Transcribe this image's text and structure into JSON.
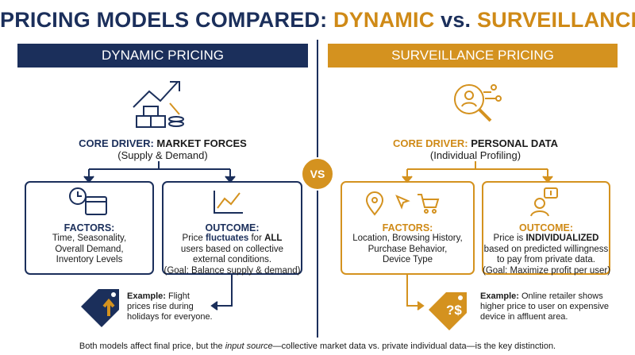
{
  "title": {
    "parts": [
      "PRICING MODELS COMPARED:",
      "DYNAMIC",
      "vs.",
      "SURVEILLANCE"
    ]
  },
  "vs": "VS",
  "left": {
    "header": "DYNAMIC PRICING",
    "driver_label": "CORE DRIVER:",
    "driver": "MARKET FORCES",
    "driver_sub": "(Supply & Demand)",
    "factors": {
      "label": "FACTORS:",
      "lines": [
        "Time, Seasonality,",
        "Overall Demand,",
        "Inventory Levels"
      ]
    },
    "outcome": {
      "label": "OUTCOME:",
      "line1": [
        "Price ",
        "fluctuates",
        " for ",
        "ALL"
      ],
      "lines": [
        "users based on collective",
        "external conditions.",
        "(Goal: Balance supply & demand)"
      ]
    },
    "example": {
      "label": "Example:",
      "text": "Flight prices rise during holidays for everyone."
    }
  },
  "right": {
    "header": "SURVEILLANCE PRICING",
    "driver_label": "CORE DRIVER:",
    "driver": "PERSONAL DATA",
    "driver_sub": "(Individual Profiling)",
    "factors": {
      "label": "FACTORS:",
      "lines": [
        "Location, Browsing History,",
        "Purchase Behavior,",
        "Device Type"
      ]
    },
    "outcome": {
      "label": "OUTCOME:",
      "line1": [
        "Price is ",
        "INDIVIDUALIZED"
      ],
      "lines": [
        "based on predicted willingness",
        "to pay from private data.",
        "(Goal: Maximize profit per user)"
      ]
    },
    "example": {
      "label": "Example:",
      "text": "Online retailer shows higher price to user on expensive device in affluent area."
    }
  },
  "footer": {
    "parts": [
      "Both models affect final price, but the ",
      "input source",
      "—collective market data vs. private individual data—is the key distinction."
    ]
  }
}
